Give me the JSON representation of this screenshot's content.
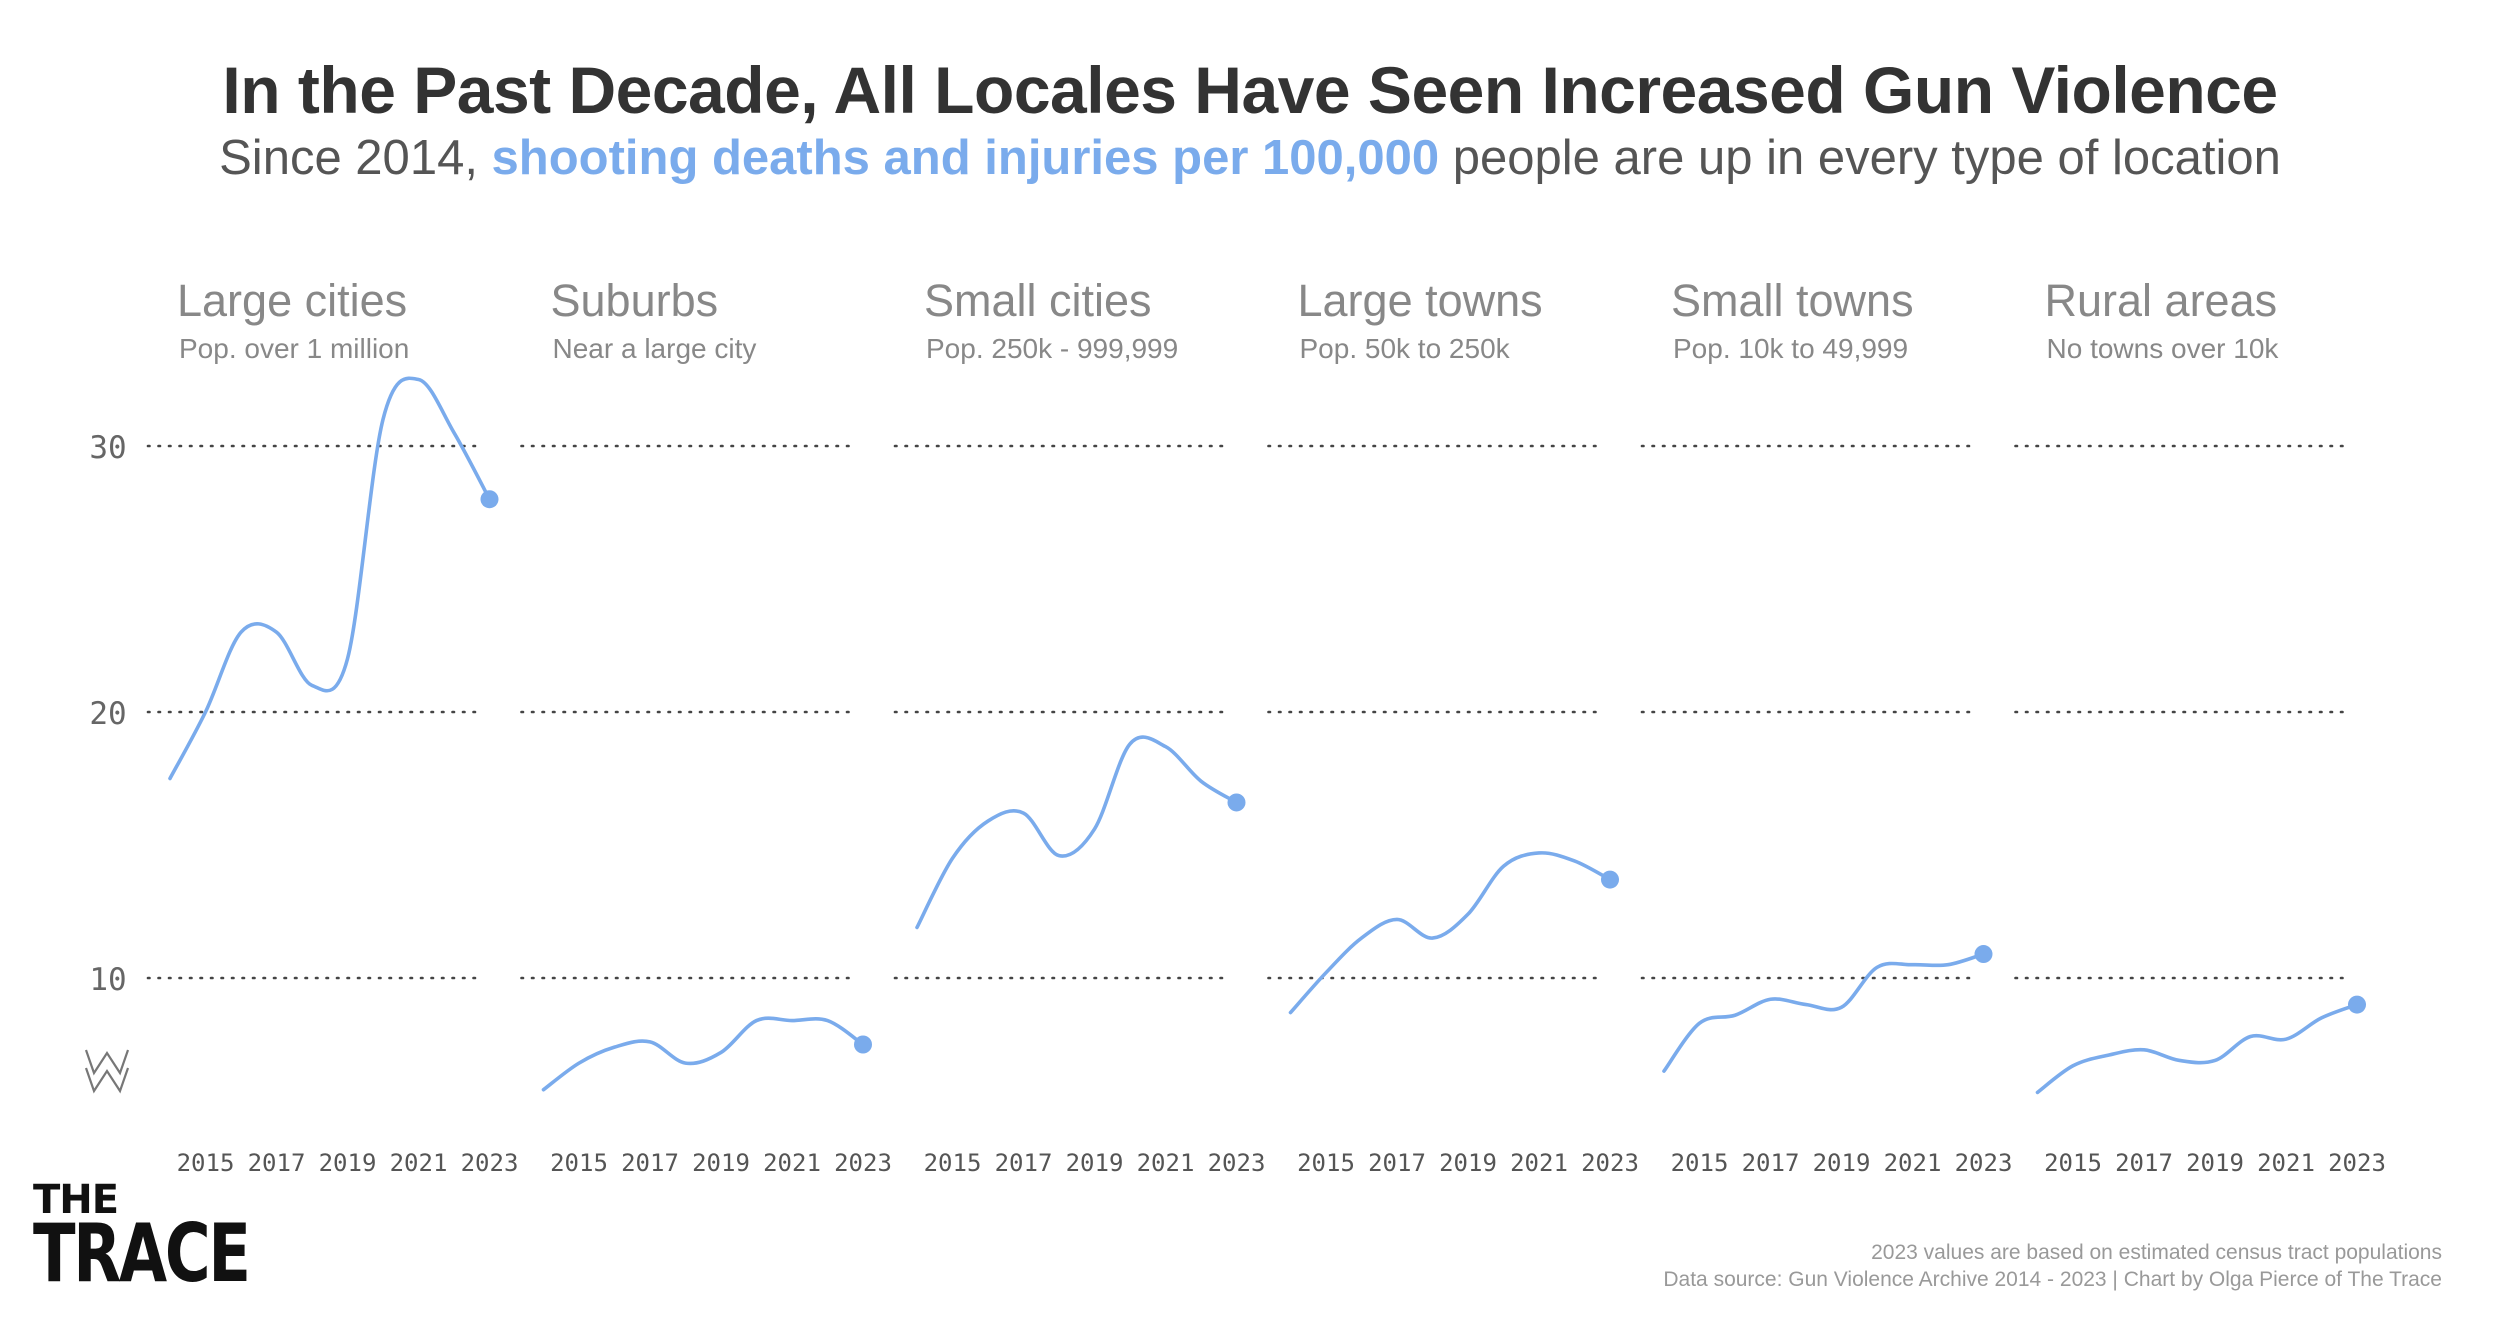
{
  "title": "In the Past Decade, All Locales Have Seen Increased Gun Violence",
  "subtitle": {
    "before": "Since 2014, ",
    "highlight": "shooting deaths and injuries per 100,000",
    "after": " people are up in every type of location"
  },
  "colors": {
    "line": "#7aabec",
    "gridline": "#444444",
    "panel_title": "#888888",
    "text": "#333333"
  },
  "chart_data": {
    "type": "line",
    "ylim": [
      0,
      35
    ],
    "yticks": [
      10,
      20,
      30
    ],
    "xticks": [
      2015,
      2017,
      2019,
      2021,
      2023
    ],
    "x": [
      2014,
      2015,
      2016,
      2017,
      2018,
      2019,
      2020,
      2021,
      2022,
      2023
    ],
    "grid": true,
    "panels": [
      {
        "name": "Large cities",
        "sub": "Pop. over 1 million",
        "values": [
          17.5,
          20.0,
          23.0,
          23.0,
          21.0,
          22.0,
          31.0,
          32.5,
          30.5,
          28.0
        ]
      },
      {
        "name": "Suburbs",
        "sub": "Near a large city",
        "values": [
          5.8,
          6.8,
          7.4,
          7.6,
          6.8,
          7.2,
          8.4,
          8.4,
          8.4,
          7.5
        ]
      },
      {
        "name": "Small cities",
        "sub": "Pop. 250k - 999,999",
        "values": [
          11.9,
          14.5,
          15.9,
          16.2,
          14.6,
          15.6,
          18.8,
          18.7,
          17.4,
          16.6
        ]
      },
      {
        "name": "Large towns",
        "sub": "Pop. 50k to 250k",
        "values": [
          8.7,
          10.2,
          11.5,
          12.2,
          11.5,
          12.4,
          14.2,
          14.7,
          14.4,
          13.7
        ]
      },
      {
        "name": "Small towns",
        "sub": "Pop. 10k to 49,999",
        "values": [
          6.5,
          8.3,
          8.6,
          9.2,
          9.0,
          8.9,
          10.4,
          10.5,
          10.5,
          10.9
        ]
      },
      {
        "name": "Rural areas",
        "sub": "No towns over 10k",
        "values": [
          5.7,
          6.7,
          7.1,
          7.3,
          6.9,
          6.9,
          7.8,
          7.7,
          8.5,
          9.0
        ]
      }
    ]
  },
  "footnotes": {
    "line1": "2023 values are based on estimated census tract populations",
    "line2": "Data source: Gun Violence Archive 2014 - 2023 | Chart by Olga Pierce of The Trace"
  },
  "logo": {
    "line1": "THE",
    "line2": "TRACE"
  }
}
